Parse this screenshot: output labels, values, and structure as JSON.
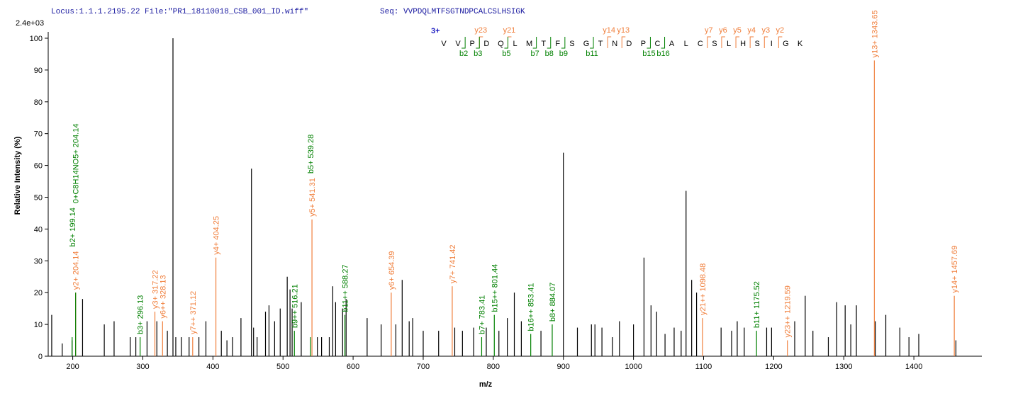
{
  "chart_data": {
    "type": "bar",
    "header": "Locus:1.1.1.2195.22 File:\"PR1_18110018_CSB_001_ID.wiff\"",
    "sequence_label": "Seq: VVPDQLMTFSGTNDPCALCSLHSIGK",
    "scale_label": "2.4e+03",
    "ylabel": "Relative   Intensity (%)",
    "xlabel": "m/z",
    "xlim": [
      165,
      1497
    ],
    "ylim": [
      0,
      102
    ],
    "xticks": [
      200,
      300,
      400,
      500,
      600,
      700,
      800,
      900,
      1000,
      1100,
      1200,
      1300,
      1400
    ],
    "yticks": [
      0,
      10,
      20,
      30,
      40,
      50,
      60,
      70,
      80,
      90,
      100
    ],
    "charge": "3+",
    "residues": [
      "V",
      "V",
      "P",
      "D",
      "Q",
      "L",
      "M",
      "T",
      "F",
      "S",
      "G",
      "T",
      "N",
      "D",
      "P",
      "C",
      "A",
      "L",
      "C",
      "S",
      "L",
      "H",
      "S",
      "I",
      "G",
      "K"
    ],
    "y_ion_marks": [
      "y23",
      "y21",
      "y14",
      "y13",
      "y7",
      "y6",
      "y5",
      "y4",
      "y3",
      "y2"
    ],
    "b_ion_marks": [
      "b2",
      "b3",
      "b5",
      "b7",
      "b8",
      "b9",
      "b11",
      "b15",
      "b16"
    ],
    "series": [
      {
        "color": "#000000",
        "x": [
          170,
          185,
          199,
          214,
          245,
          259,
          282,
          290,
          306,
          320,
          335,
          343,
          347,
          355,
          366,
          380,
          390,
          412,
          420,
          428,
          440,
          455,
          458,
          463,
          475,
          480,
          488,
          496,
          506,
          510,
          513,
          526,
          549,
          555,
          566,
          571,
          575,
          585,
          590,
          620,
          640,
          661,
          670,
          680,
          685,
          700,
          722,
          745,
          756,
          772,
          790,
          808,
          820,
          830,
          840,
          868,
          900,
          920,
          940,
          945,
          955,
          970,
          980,
          1000,
          1015,
          1025,
          1033,
          1045,
          1058,
          1068,
          1075,
          1083,
          1090,
          1125,
          1140,
          1148,
          1158,
          1190,
          1197,
          1230,
          1245,
          1256,
          1278,
          1290,
          1302,
          1310,
          1318,
          1345,
          1360,
          1380,
          1393,
          1407,
          1460
        ],
        "values": [
          13,
          4,
          5,
          18,
          10,
          11,
          6,
          6,
          11,
          11,
          8,
          100,
          6,
          6,
          6,
          6,
          11,
          8,
          5,
          6,
          12,
          59,
          9,
          6,
          14,
          16,
          11,
          15,
          25,
          21,
          15,
          17,
          6,
          6,
          6,
          22,
          17,
          15,
          18,
          12,
          10,
          10,
          24,
          11,
          12,
          8,
          8,
          9,
          8,
          9,
          9,
          8,
          12,
          20,
          11,
          8,
          64,
          9,
          10,
          10,
          9,
          6,
          11,
          10,
          31,
          16,
          14,
          7,
          9,
          8,
          52,
          24,
          20,
          9,
          8,
          11,
          9,
          9,
          9,
          11,
          19,
          8,
          6,
          17,
          16,
          10,
          16,
          11,
          13,
          9,
          6,
          7,
          5
        ]
      },
      {
        "color": "#f07f3c",
        "x": [
          204.14,
          317.22,
          328.13,
          371.12,
          404.25,
          541.31,
          654.39,
          741.42,
          1098.48,
          1219.59,
          1343.65,
          1457.69
        ],
        "values": [
          20,
          14,
          11,
          6,
          31,
          43,
          20,
          22,
          12,
          5,
          93,
          19
        ],
        "labels": [
          "y2+ 204.14",
          "y3+ 317.22",
          "y6++ 328.13",
          "y7++ 371.12",
          "y4+ 404.25",
          "y5+ 541.31",
          "y6+ 654.39",
          "y7+ 741.42",
          "y21++ 1098.48",
          "y23++ 1219.59",
          "y13+ 1343.65",
          "y14+ 1457.69"
        ]
      },
      {
        "color": "#008000",
        "x": [
          199.14,
          204.14,
          296.13,
          516.21,
          539.28,
          588.27,
          783.41,
          801.44,
          853.41,
          884.07,
          1175.52
        ],
        "values": [
          6,
          20,
          6,
          8,
          6,
          13,
          6,
          13,
          7,
          10,
          8
        ],
        "labels": [
          "b2+ 199.14",
          "0+C8H14NO5+ 204.14",
          "b3+ 296.13",
          "b9++ 516.21",
          "b5+ 539.28",
          "b11++ 588.27",
          "b7+ 783.41",
          "b15++ 801.44",
          "b16++ 853.41",
          "b8+ 884.07",
          "b11+ 1175.52"
        ]
      }
    ]
  }
}
